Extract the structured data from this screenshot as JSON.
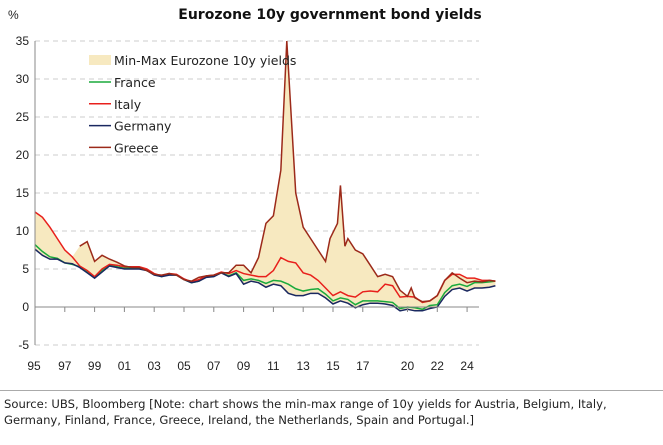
{
  "chart_data": {
    "type": "line",
    "title": "Eurozone 10y government bond yields",
    "ylabel": "%",
    "ylim": [
      -5,
      35
    ],
    "yticks": [
      -5,
      0,
      5,
      10,
      15,
      20,
      25,
      30,
      35
    ],
    "xlim": [
      1995,
      2026
    ],
    "xticks": [
      {
        "v": 1995,
        "l": "95"
      },
      {
        "v": 1997,
        "l": "97"
      },
      {
        "v": 1999,
        "l": "99"
      },
      {
        "v": 2001,
        "l": "01"
      },
      {
        "v": 2003,
        "l": "03"
      },
      {
        "v": 2005,
        "l": "05"
      },
      {
        "v": 2007,
        "l": "07"
      },
      {
        "v": 2009,
        "l": "09"
      },
      {
        "v": 2011,
        "l": "11"
      },
      {
        "v": 2013,
        "l": "13"
      },
      {
        "v": 2015,
        "l": "15"
      },
      {
        "v": 2017,
        "l": "17"
      },
      {
        "v": 2020,
        "l": "20"
      },
      {
        "v": 2022,
        "l": "22"
      },
      {
        "v": 2024,
        "l": "24"
      }
    ],
    "grid": "horizontal dashed",
    "legend_position": "top-left",
    "band": {
      "name": "Min-Max Eurozone 10y yields",
      "color": "#f7e9c0"
    },
    "series": [
      {
        "name": "France",
        "color": "#1aaa3c",
        "x": [
          1995,
          1995.5,
          1996,
          1996.5,
          1997,
          1997.5,
          1998,
          1998.5,
          1999,
          1999.5,
          2000,
          2000.5,
          2001,
          2001.5,
          2002,
          2002.5,
          2003,
          2003.5,
          2004,
          2004.5,
          2005,
          2005.5,
          2006,
          2006.5,
          2007,
          2007.5,
          2008,
          2008.5,
          2009,
          2009.5,
          2010,
          2010.5,
          2011,
          2011.5,
          2012,
          2012.5,
          2013,
          2013.5,
          2014,
          2014.5,
          2015,
          2015.5,
          2016,
          2016.5,
          2017,
          2017.5,
          2018,
          2018.5,
          2019,
          2019.5,
          2020,
          2020.5,
          2021,
          2021.5,
          2022,
          2022.5,
          2023,
          2023.5,
          2024,
          2024.5,
          2025,
          2025.5,
          2025.9
        ],
        "y": [
          8.2,
          7.3,
          6.6,
          6.4,
          5.8,
          5.6,
          5.3,
          4.6,
          3.9,
          4.8,
          5.5,
          5.3,
          5.1,
          5.1,
          5.1,
          4.8,
          4.3,
          4.0,
          4.3,
          4.2,
          3.6,
          3.2,
          3.4,
          4.0,
          4.1,
          4.5,
          4.1,
          4.5,
          3.5,
          3.7,
          3.5,
          3.1,
          3.5,
          3.4,
          3.0,
          2.4,
          2.1,
          2.3,
          2.4,
          1.7,
          0.8,
          1.2,
          1.0,
          0.3,
          0.8,
          0.8,
          0.8,
          0.7,
          0.6,
          -0.2,
          0.0,
          -0.1,
          -0.3,
          0.2,
          0.3,
          1.9,
          2.8,
          3.0,
          2.7,
          3.2,
          3.2,
          3.3,
          3.4
        ]
      },
      {
        "name": "Italy",
        "color": "#e8201c",
        "x": [
          1995,
          1995.5,
          1996,
          1996.5,
          1997,
          1997.5,
          1998,
          1998.5,
          1999,
          1999.5,
          2000,
          2000.5,
          2001,
          2001.5,
          2002,
          2002.5,
          2003,
          2003.5,
          2004,
          2004.5,
          2005,
          2005.5,
          2006,
          2006.5,
          2007,
          2007.5,
          2008,
          2008.5,
          2009,
          2009.5,
          2010,
          2010.5,
          2011,
          2011.5,
          2012,
          2012.5,
          2013,
          2013.5,
          2014,
          2014.5,
          2015,
          2015.5,
          2016,
          2016.5,
          2017,
          2017.5,
          2018,
          2018.5,
          2019,
          2019.5,
          2020,
          2020.5,
          2021,
          2021.5,
          2022,
          2022.5,
          2023,
          2023.5,
          2024,
          2024.5,
          2025,
          2025.5,
          2025.9
        ],
        "y": [
          12.5,
          11.8,
          10.5,
          9.0,
          7.5,
          6.6,
          5.4,
          4.8,
          4.0,
          5.0,
          5.6,
          5.5,
          5.3,
          5.3,
          5.3,
          5.0,
          4.4,
          4.1,
          4.4,
          4.3,
          3.7,
          3.3,
          3.6,
          4.1,
          4.2,
          4.6,
          4.4,
          4.8,
          4.4,
          4.2,
          4.0,
          4.0,
          4.8,
          6.5,
          6.0,
          5.8,
          4.5,
          4.2,
          3.5,
          2.5,
          1.5,
          2.0,
          1.5,
          1.3,
          2.0,
          2.1,
          2.0,
          3.0,
          2.8,
          1.3,
          1.4,
          1.3,
          0.6,
          0.8,
          1.5,
          3.5,
          4.3,
          4.3,
          3.8,
          3.8,
          3.5,
          3.5,
          3.4
        ]
      },
      {
        "name": "Germany",
        "color": "#1a2860",
        "x": [
          1995,
          1995.5,
          1996,
          1996.5,
          1997,
          1997.5,
          1998,
          1998.5,
          1999,
          1999.5,
          2000,
          2000.5,
          2001,
          2001.5,
          2002,
          2002.5,
          2003,
          2003.5,
          2004,
          2004.5,
          2005,
          2005.5,
          2006,
          2006.5,
          2007,
          2007.5,
          2008,
          2008.5,
          2009,
          2009.5,
          2010,
          2010.5,
          2011,
          2011.5,
          2012,
          2012.5,
          2013,
          2013.5,
          2014,
          2014.5,
          2015,
          2015.5,
          2016,
          2016.5,
          2017,
          2017.5,
          2018,
          2018.5,
          2019,
          2019.5,
          2020,
          2020.5,
          2021,
          2021.5,
          2022,
          2022.5,
          2023,
          2023.5,
          2024,
          2024.5,
          2025,
          2025.5,
          2025.9
        ],
        "y": [
          7.6,
          6.8,
          6.3,
          6.3,
          5.8,
          5.7,
          5.2,
          4.5,
          3.8,
          4.6,
          5.4,
          5.2,
          5.0,
          5.0,
          5.0,
          4.8,
          4.2,
          4.0,
          4.2,
          4.2,
          3.6,
          3.2,
          3.4,
          3.9,
          4.0,
          4.5,
          4.0,
          4.4,
          3.0,
          3.4,
          3.2,
          2.6,
          3.0,
          2.8,
          1.8,
          1.5,
          1.5,
          1.8,
          1.8,
          1.2,
          0.4,
          0.8,
          0.5,
          -0.1,
          0.3,
          0.5,
          0.5,
          0.4,
          0.2,
          -0.5,
          -0.3,
          -0.5,
          -0.5,
          -0.2,
          0.0,
          1.4,
          2.3,
          2.5,
          2.1,
          2.5,
          2.5,
          2.6,
          2.8
        ]
      },
      {
        "name": "Greece",
        "color": "#9c2a1a",
        "x": [
          1998,
          1998.5,
          1999,
          1999.5,
          2000,
          2000.5,
          2001,
          2001.5,
          2002,
          2002.5,
          2003,
          2003.5,
          2004,
          2004.5,
          2005,
          2005.5,
          2006,
          2006.5,
          2007,
          2007.5,
          2008,
          2008.5,
          2009,
          2009.5,
          2010,
          2010.5,
          2011,
          2011.5,
          2011.9,
          2012.2,
          2012.5,
          2013,
          2013.5,
          2014,
          2014.5,
          2014.8,
          2015.3,
          2015.5,
          2015.8,
          2016,
          2016.5,
          2017,
          2017.5,
          2018,
          2018.5,
          2019,
          2019.5,
          2020,
          2020.25,
          2020.5,
          2021,
          2021.5,
          2022,
          2022.5,
          2023,
          2023.5,
          2024,
          2024.5,
          2025,
          2025.5,
          2025.9
        ],
        "y": [
          8.0,
          8.6,
          6.0,
          6.8,
          6.3,
          5.9,
          5.4,
          5.2,
          5.2,
          4.8,
          4.3,
          4.2,
          4.4,
          4.2,
          3.6,
          3.4,
          3.9,
          4.1,
          4.2,
          4.5,
          4.5,
          5.5,
          5.5,
          4.5,
          6.5,
          11,
          12,
          18,
          35,
          25,
          15,
          10.5,
          9,
          7.5,
          6,
          9,
          11,
          16,
          8,
          9,
          7.5,
          7,
          5.5,
          4.0,
          4.3,
          4.0,
          2.2,
          1.4,
          2.5,
          1.2,
          0.7,
          0.8,
          1.5,
          3.5,
          4.5,
          3.8,
          3.2,
          3.4,
          3.3,
          3.5,
          3.4
        ]
      }
    ]
  },
  "source": "Source: UBS, Bloomberg [Note: chart shows the min-max range of 10y yields for Austria, Belgium, Italy, Germany, Finland, France, Greece, Ireland, the Netherlands, Spain and Portugal.]"
}
